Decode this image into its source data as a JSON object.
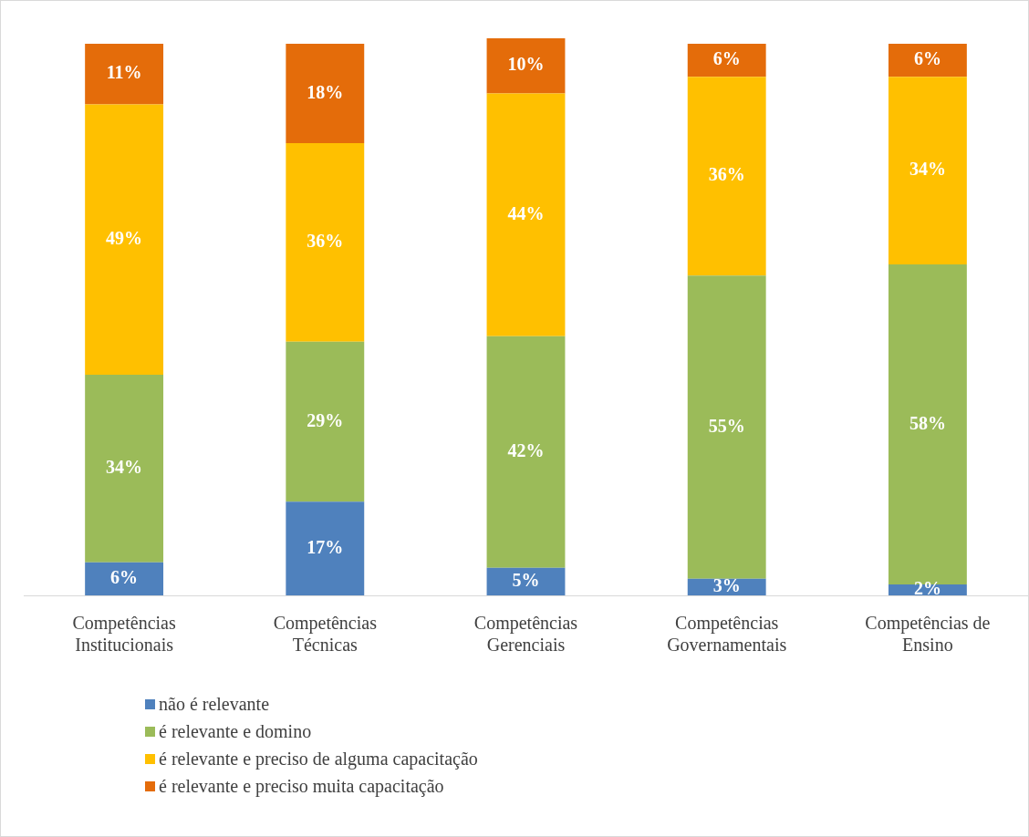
{
  "chart_data": {
    "type": "bar",
    "stacked": true,
    "legend": "bottom",
    "grid": false,
    "categories": [
      "Competências Institucionais",
      "Competências Técnicas",
      "Competências Gerenciais",
      "Competências Governamentais",
      "Competências de Ensino"
    ],
    "series": [
      {
        "name": "não é relevante",
        "color": "#4f81bd",
        "values": [
          6,
          17,
          5,
          3,
          2
        ],
        "value_labels": [
          "6%",
          "17%",
          "5%",
          "3%",
          "2%"
        ]
      },
      {
        "name": "é relevante e domino",
        "color": "#9bbb59",
        "values": [
          34,
          29,
          42,
          55,
          58
        ],
        "value_labels": [
          "34%",
          "29%",
          "42%",
          "55%",
          "58%"
        ]
      },
      {
        "name": "é relevante e preciso de alguma capacitação",
        "color": "#ffc000",
        "values": [
          49,
          36,
          44,
          36,
          34
        ],
        "value_labels": [
          "49%",
          "36%",
          "44%",
          "36%",
          "34%"
        ]
      },
      {
        "name": "é relevante e preciso muita capacitação",
        "color": "#e46c0a",
        "values": [
          11,
          18,
          10,
          6,
          6
        ],
        "value_labels": [
          "11%",
          "18%",
          "10%",
          "6%",
          "6%"
        ]
      }
    ]
  }
}
